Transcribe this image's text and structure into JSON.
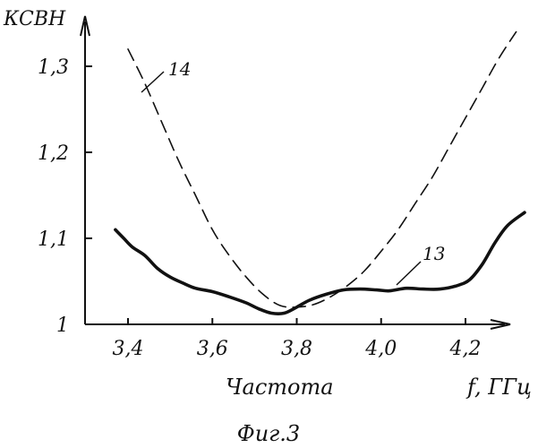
{
  "chart_data": {
    "type": "line",
    "ylabel": "КСВН",
    "xlabel": "Частота",
    "xunit_label": "f, ГГц",
    "caption": "Фиг.3",
    "xlim": [
      3.3,
      4.4
    ],
    "ylim": [
      1.0,
      1.35
    ],
    "x_ticks": [
      3.4,
      3.6,
      3.8,
      4.0,
      4.2
    ],
    "x_tick_labels": [
      "3,4",
      "3,6",
      "3,8",
      "4,0",
      "4,2"
    ],
    "y_ticks": [
      1.0,
      1.1,
      1.2,
      1.3
    ],
    "y_tick_labels": [
      "1",
      "1,1",
      "1,2",
      "1,3"
    ],
    "grid": false,
    "series": [
      {
        "name": "13",
        "style": "solid",
        "color": "#111111",
        "x": [
          3.37,
          3.39,
          3.41,
          3.44,
          3.47,
          3.5,
          3.53,
          3.56,
          3.6,
          3.64,
          3.68,
          3.71,
          3.74,
          3.77,
          3.8,
          3.83,
          3.87,
          3.91,
          3.95,
          3.99,
          4.02,
          4.06,
          4.1,
          4.14,
          4.18,
          4.21,
          4.24,
          4.27,
          4.3,
          4.34
        ],
        "y": [
          1.11,
          1.1,
          1.09,
          1.08,
          1.065,
          1.055,
          1.048,
          1.042,
          1.038,
          1.032,
          1.025,
          1.018,
          1.013,
          1.013,
          1.02,
          1.028,
          1.035,
          1.04,
          1.041,
          1.04,
          1.039,
          1.042,
          1.041,
          1.041,
          1.045,
          1.052,
          1.07,
          1.095,
          1.115,
          1.13
        ]
      },
      {
        "name": "14",
        "style": "dashed",
        "color": "#111111",
        "x": [
          3.4,
          3.44,
          3.48,
          3.52,
          3.56,
          3.6,
          3.64,
          3.68,
          3.72,
          3.76,
          3.8,
          3.84,
          3.88,
          3.92,
          3.96,
          4.0,
          4.04,
          4.08,
          4.12,
          4.16,
          4.2,
          4.24,
          4.28,
          4.32
        ],
        "y": [
          1.32,
          1.28,
          1.235,
          1.19,
          1.15,
          1.11,
          1.08,
          1.055,
          1.035,
          1.022,
          1.02,
          1.023,
          1.032,
          1.045,
          1.062,
          1.085,
          1.11,
          1.14,
          1.17,
          1.205,
          1.24,
          1.275,
          1.31,
          1.34
        ]
      }
    ]
  }
}
